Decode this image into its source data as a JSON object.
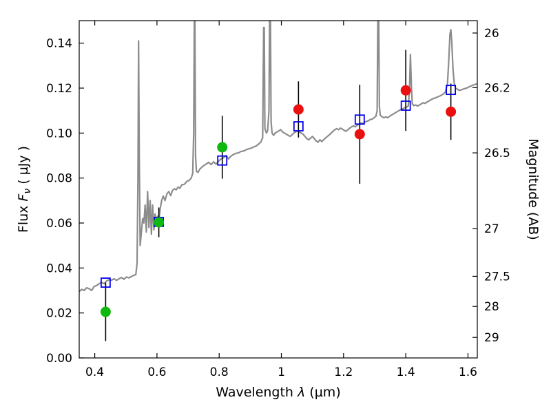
{
  "chart_data": {
    "type": "line",
    "title": "",
    "background": "#ffffff",
    "frame_color": "#000000",
    "xlabel_parts": {
      "prefix": "Wavelength  ",
      "symbol": "λ",
      "suffix": " (µm)"
    },
    "ylabel_left_parts": {
      "prefix": "Flux  ",
      "symbol": "F",
      "subscript": "ν",
      "suffix": "  ( µJy )"
    },
    "ylabel_right": "Magnitude (AB)",
    "x_axis": {
      "range": [
        0.35,
        1.63
      ],
      "ticks": [
        0.4,
        0.6,
        0.8,
        1.0,
        1.2,
        1.4,
        1.6
      ],
      "tick_labels": [
        "0.4",
        "0.6",
        "0.8",
        "1",
        "1.2",
        "1.4",
        "1.6"
      ]
    },
    "y_axis_left": {
      "range": [
        0.0,
        0.15
      ],
      "ticks": [
        0.0,
        0.02,
        0.04,
        0.06,
        0.08,
        0.1,
        0.12,
        0.14
      ],
      "tick_labels": [
        "0.00",
        "0.02",
        "0.04",
        "0.06",
        "0.08",
        "0.10",
        "0.12",
        "0.14"
      ]
    },
    "y_axis_right": {
      "tick_labels": [
        "26",
        "26.2",
        "26.5",
        "27",
        "27.5",
        "28",
        "29"
      ],
      "tick_flux_positions": [
        0.1445,
        0.1202,
        0.0912,
        0.0575,
        0.0363,
        0.0229,
        0.00912
      ]
    },
    "series": [
      {
        "name": "model-spectrum",
        "type": "line",
        "color": "#8c8c8c",
        "linewidth": 2.2,
        "points": [
          [
            0.35,
            0.0295
          ],
          [
            0.358,
            0.0305
          ],
          [
            0.366,
            0.03
          ],
          [
            0.374,
            0.0312
          ],
          [
            0.382,
            0.0308
          ],
          [
            0.39,
            0.03
          ],
          [
            0.398,
            0.0318
          ],
          [
            0.406,
            0.0322
          ],
          [
            0.414,
            0.033
          ],
          [
            0.422,
            0.0336
          ],
          [
            0.43,
            0.033
          ],
          [
            0.438,
            0.0342
          ],
          [
            0.446,
            0.0348
          ],
          [
            0.454,
            0.0346
          ],
          [
            0.462,
            0.0352
          ],
          [
            0.47,
            0.0345
          ],
          [
            0.478,
            0.0352
          ],
          [
            0.486,
            0.0358
          ],
          [
            0.494,
            0.035
          ],
          [
            0.502,
            0.036
          ],
          [
            0.51,
            0.0356
          ],
          [
            0.518,
            0.0362
          ],
          [
            0.526,
            0.0368
          ],
          [
            0.532,
            0.037
          ],
          [
            0.536,
            0.042
          ],
          [
            0.539,
            0.08
          ],
          [
            0.541,
            0.141
          ],
          [
            0.543,
            0.09
          ],
          [
            0.546,
            0.05
          ],
          [
            0.55,
            0.056
          ],
          [
            0.554,
            0.062
          ],
          [
            0.558,
            0.06
          ],
          [
            0.562,
            0.068
          ],
          [
            0.566,
            0.056
          ],
          [
            0.57,
            0.074
          ],
          [
            0.574,
            0.058
          ],
          [
            0.578,
            0.07
          ],
          [
            0.582,
            0.055
          ],
          [
            0.586,
            0.068
          ],
          [
            0.59,
            0.057
          ],
          [
            0.594,
            0.064
          ],
          [
            0.598,
            0.06
          ],
          [
            0.602,
            0.063
          ],
          [
            0.606,
            0.061
          ],
          [
            0.61,
            0.066
          ],
          [
            0.615,
            0.07
          ],
          [
            0.62,
            0.072
          ],
          [
            0.626,
            0.07
          ],
          [
            0.632,
            0.073
          ],
          [
            0.638,
            0.074
          ],
          [
            0.644,
            0.0722
          ],
          [
            0.65,
            0.0745
          ],
          [
            0.656,
            0.0752
          ],
          [
            0.662,
            0.0748
          ],
          [
            0.668,
            0.076
          ],
          [
            0.674,
            0.0755
          ],
          [
            0.68,
            0.077
          ],
          [
            0.688,
            0.0772
          ],
          [
            0.696,
            0.0785
          ],
          [
            0.704,
            0.079
          ],
          [
            0.71,
            0.08
          ],
          [
            0.715,
            0.082
          ],
          [
            0.718,
            0.1
          ],
          [
            0.72,
            0.15
          ],
          [
            0.721,
            0.155
          ],
          [
            0.722,
            0.15
          ],
          [
            0.724,
            0.09
          ],
          [
            0.727,
            0.083
          ],
          [
            0.732,
            0.0825
          ],
          [
            0.738,
            0.084
          ],
          [
            0.744,
            0.0848
          ],
          [
            0.75,
            0.0855
          ],
          [
            0.758,
            0.0862
          ],
          [
            0.766,
            0.087
          ],
          [
            0.774,
            0.086
          ],
          [
            0.782,
            0.0872
          ],
          [
            0.79,
            0.0862
          ],
          [
            0.798,
            0.0875
          ],
          [
            0.806,
            0.0885
          ],
          [
            0.814,
            0.089
          ],
          [
            0.822,
            0.09
          ],
          [
            0.83,
            0.0885
          ],
          [
            0.838,
            0.0898
          ],
          [
            0.846,
            0.0905
          ],
          [
            0.854,
            0.091
          ],
          [
            0.862,
            0.0912
          ],
          [
            0.87,
            0.0918
          ],
          [
            0.878,
            0.092
          ],
          [
            0.886,
            0.0925
          ],
          [
            0.894,
            0.093
          ],
          [
            0.902,
            0.0932
          ],
          [
            0.91,
            0.0938
          ],
          [
            0.918,
            0.0942
          ],
          [
            0.926,
            0.095
          ],
          [
            0.934,
            0.096
          ],
          [
            0.94,
            0.098
          ],
          [
            0.943,
            0.147
          ],
          [
            0.945,
            0.147
          ],
          [
            0.947,
            0.102
          ],
          [
            0.952,
            0.1
          ],
          [
            0.956,
            0.101
          ],
          [
            0.96,
            0.11
          ],
          [
            0.962,
            0.15
          ],
          [
            0.9635,
            0.155
          ],
          [
            0.965,
            0.15
          ],
          [
            0.967,
            0.105
          ],
          [
            0.97,
            0.1
          ],
          [
            0.975,
            0.099
          ],
          [
            0.98,
            0.1
          ],
          [
            0.986,
            0.1005
          ],
          [
            0.992,
            0.101
          ],
          [
            0.998,
            0.1015
          ],
          [
            1.004,
            0.1005
          ],
          [
            1.01,
            0.1
          ],
          [
            1.016,
            0.0995
          ],
          [
            1.022,
            0.099
          ],
          [
            1.028,
            0.0985
          ],
          [
            1.034,
            0.0992
          ],
          [
            1.04,
            0.1
          ],
          [
            1.046,
            0.1005
          ],
          [
            1.052,
            0.101
          ],
          [
            1.058,
            0.1005
          ],
          [
            1.064,
            0.1
          ],
          [
            1.07,
            0.0995
          ],
          [
            1.076,
            0.0985
          ],
          [
            1.082,
            0.0975
          ],
          [
            1.088,
            0.097
          ],
          [
            1.094,
            0.0978
          ],
          [
            1.1,
            0.0985
          ],
          [
            1.106,
            0.0975
          ],
          [
            1.112,
            0.0965
          ],
          [
            1.118,
            0.096
          ],
          [
            1.124,
            0.097
          ],
          [
            1.13,
            0.0962
          ],
          [
            1.136,
            0.097
          ],
          [
            1.142,
            0.0978
          ],
          [
            1.148,
            0.0985
          ],
          [
            1.154,
            0.0992
          ],
          [
            1.16,
            0.1
          ],
          [
            1.166,
            0.1008
          ],
          [
            1.172,
            0.1015
          ],
          [
            1.178,
            0.102
          ],
          [
            1.184,
            0.1015
          ],
          [
            1.19,
            0.1022
          ],
          [
            1.196,
            0.1018
          ],
          [
            1.202,
            0.1012
          ],
          [
            1.208,
            0.1008
          ],
          [
            1.214,
            0.1015
          ],
          [
            1.22,
            0.1022
          ],
          [
            1.226,
            0.1028
          ],
          [
            1.232,
            0.1032
          ],
          [
            1.238,
            0.1028
          ],
          [
            1.244,
            0.1035
          ],
          [
            1.25,
            0.104
          ],
          [
            1.256,
            0.1045
          ],
          [
            1.262,
            0.1042
          ],
          [
            1.268,
            0.1048
          ],
          [
            1.274,
            0.1052
          ],
          [
            1.28,
            0.1055
          ],
          [
            1.286,
            0.106
          ],
          [
            1.292,
            0.1062
          ],
          [
            1.298,
            0.1068
          ],
          [
            1.304,
            0.1075
          ],
          [
            1.308,
            0.11
          ],
          [
            1.31,
            0.15
          ],
          [
            1.3115,
            0.155
          ],
          [
            1.313,
            0.15
          ],
          [
            1.315,
            0.112
          ],
          [
            1.318,
            0.108
          ],
          [
            1.324,
            0.1072
          ],
          [
            1.33,
            0.1068
          ],
          [
            1.336,
            0.1072
          ],
          [
            1.342,
            0.1068
          ],
          [
            1.348,
            0.1075
          ],
          [
            1.354,
            0.108
          ],
          [
            1.36,
            0.1085
          ],
          [
            1.366,
            0.109
          ],
          [
            1.372,
            0.1095
          ],
          [
            1.378,
            0.11
          ],
          [
            1.384,
            0.1105
          ],
          [
            1.39,
            0.1108
          ],
          [
            1.396,
            0.1112
          ],
          [
            1.402,
            0.1115
          ],
          [
            1.408,
            0.112
          ],
          [
            1.412,
            0.12
          ],
          [
            1.415,
            0.135
          ],
          [
            1.418,
            0.121
          ],
          [
            1.421,
            0.113
          ],
          [
            1.426,
            0.1122
          ],
          [
            1.432,
            0.1125
          ],
          [
            1.438,
            0.112
          ],
          [
            1.444,
            0.1125
          ],
          [
            1.45,
            0.113
          ],
          [
            1.456,
            0.1135
          ],
          [
            1.462,
            0.1132
          ],
          [
            1.468,
            0.1138
          ],
          [
            1.474,
            0.1142
          ],
          [
            1.48,
            0.1148
          ],
          [
            1.486,
            0.1152
          ],
          [
            1.492,
            0.1155
          ],
          [
            1.498,
            0.1158
          ],
          [
            1.504,
            0.1162
          ],
          [
            1.51,
            0.1165
          ],
          [
            1.516,
            0.117
          ],
          [
            1.522,
            0.1175
          ],
          [
            1.528,
            0.1185
          ],
          [
            1.534,
            0.122
          ],
          [
            1.538,
            0.132
          ],
          [
            1.542,
            0.144
          ],
          [
            1.545,
            0.146
          ],
          [
            1.548,
            0.14
          ],
          [
            1.552,
            0.128
          ],
          [
            1.556,
            0.122
          ],
          [
            1.56,
            0.12
          ],
          [
            1.566,
            0.1195
          ],
          [
            1.572,
            0.119
          ],
          [
            1.578,
            0.1192
          ],
          [
            1.584,
            0.1195
          ],
          [
            1.59,
            0.1198
          ],
          [
            1.596,
            0.12
          ],
          [
            1.602,
            0.1205
          ],
          [
            1.608,
            0.1208
          ],
          [
            1.614,
            0.1212
          ],
          [
            1.62,
            0.1215
          ],
          [
            1.63,
            0.122
          ]
        ]
      },
      {
        "name": "error-bars",
        "type": "errorbar",
        "color": "#000000",
        "linewidth": 1.6,
        "points": [
          {
            "x": 0.435,
            "y": 0.0205,
            "yerr": 0.013
          },
          {
            "x": 0.606,
            "y": 0.0603,
            "yerr": 0.0066
          },
          {
            "x": 0.81,
            "y": 0.0937,
            "yerr": 0.014
          },
          {
            "x": 1.055,
            "y": 0.1105,
            "yerr": 0.0125
          },
          {
            "x": 1.252,
            "y": 0.0995,
            "yerr": 0.022
          },
          {
            "x": 1.4,
            "y": 0.119,
            "yerr": 0.018
          },
          {
            "x": 1.545,
            "y": 0.1095,
            "yerr": 0.0125
          }
        ]
      },
      {
        "name": "model-photometry",
        "type": "scatter",
        "marker": "open-square",
        "color": "#0000ee",
        "marker_size": 13,
        "points": [
          [
            0.435,
            0.0335
          ],
          [
            0.606,
            0.0605
          ],
          [
            0.81,
            0.0878
          ],
          [
            1.055,
            0.103
          ],
          [
            1.252,
            0.106
          ],
          [
            1.4,
            0.1122
          ],
          [
            1.545,
            0.1192
          ]
        ]
      },
      {
        "name": "observed-photometry-optical",
        "type": "scatter",
        "marker": "circle",
        "color": "#0fb80f",
        "marker_size": 14,
        "points": [
          [
            0.435,
            0.0205
          ],
          [
            0.606,
            0.0603
          ],
          [
            0.81,
            0.0937
          ]
        ]
      },
      {
        "name": "observed-photometry-infrared",
        "type": "scatter",
        "marker": "circle",
        "color": "#ea1010",
        "marker_size": 14,
        "points": [
          [
            1.055,
            0.1105
          ],
          [
            1.252,
            0.0995
          ],
          [
            1.4,
            0.119
          ],
          [
            1.545,
            0.1095
          ]
        ]
      }
    ]
  }
}
